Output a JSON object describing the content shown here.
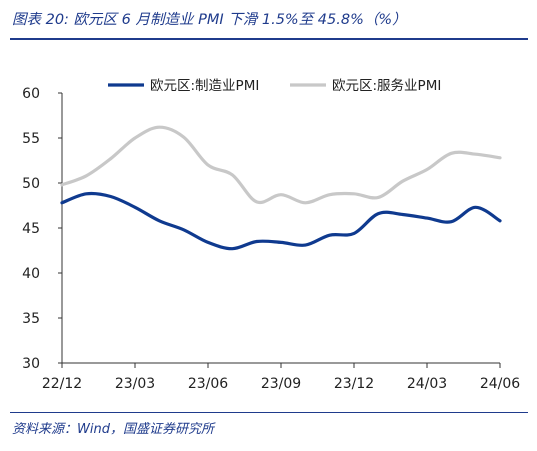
{
  "header": {
    "title": "图表 20:  欧元区 6 月制造业 PMI 下滑 1.5%至 45.8%（%）"
  },
  "footer": {
    "source": "资料来源：Wind，国盛证券研究所"
  },
  "colors": {
    "manufacturing": "#0f3a8f",
    "services": "#c8c8c8",
    "accent": "#1f3b8c"
  },
  "chart_data": {
    "type": "line",
    "title": "",
    "xlabel": "",
    "ylabel": "",
    "ylim": [
      30,
      60
    ],
    "yticks": [
      30,
      35,
      40,
      45,
      50,
      55,
      60
    ],
    "x": [
      "22/12",
      "23/01",
      "23/02",
      "23/03",
      "23/04",
      "23/05",
      "23/06",
      "23/07",
      "23/08",
      "23/09",
      "23/10",
      "23/11",
      "23/12",
      "24/01",
      "24/02",
      "24/03",
      "24/04",
      "24/05",
      "24/06"
    ],
    "xtick_labels": [
      "22/12",
      "23/03",
      "23/06",
      "23/09",
      "23/12",
      "24/03",
      "24/06"
    ],
    "grid": false,
    "legend_position": "top",
    "series": [
      {
        "name": "欧元区:制造业PMI",
        "color": "#0f3a8f",
        "values": [
          47.8,
          48.8,
          48.5,
          47.3,
          45.8,
          44.8,
          43.4,
          42.7,
          43.5,
          43.4,
          43.1,
          44.2,
          44.4,
          46.6,
          46.5,
          46.1,
          45.7,
          47.3,
          45.8
        ]
      },
      {
        "name": "欧元区:服务业PMI",
        "color": "#c8c8c8",
        "values": [
          49.8,
          50.8,
          52.7,
          55.0,
          56.2,
          55.1,
          52.0,
          50.9,
          47.9,
          48.7,
          47.8,
          48.7,
          48.8,
          48.4,
          50.2,
          51.5,
          53.3,
          53.2,
          52.8
        ]
      }
    ]
  }
}
